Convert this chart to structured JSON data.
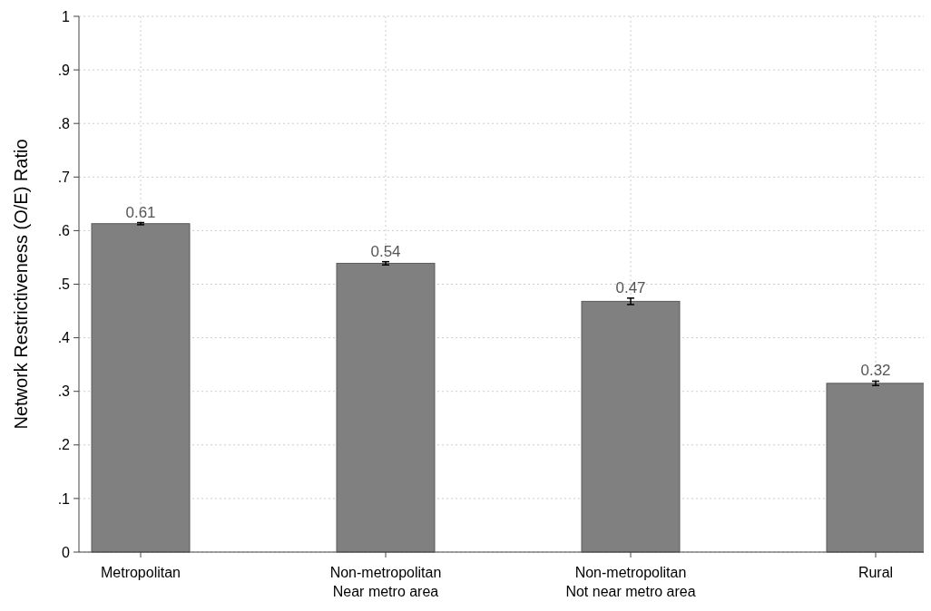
{
  "chart_data": {
    "type": "bar",
    "categories": [
      "Metropolitan",
      "Non-metropolitan\nNear metro area",
      "Non-metropolitan\nNot near metro area",
      "Rural"
    ],
    "values": [
      0.613,
      0.539,
      0.468,
      0.315
    ],
    "errors": [
      0.002,
      0.003,
      0.006,
      0.004
    ],
    "value_labels": [
      "0.61",
      "0.54",
      "0.47",
      "0.32"
    ],
    "color": "#808080",
    "ylabel": "Network Restrictiveness (O/E) Ratio",
    "ylim": [
      0,
      1
    ],
    "yticks": [
      0,
      {
        "value": 0.1,
        "label": ".1"
      },
      {
        "value": 0.2,
        "label": ".2"
      },
      {
        "value": 0.3,
        "label": ".3"
      },
      {
        "value": 0.4,
        "label": ".4"
      },
      {
        "value": 0.5,
        "label": ".5"
      },
      {
        "value": 0.6,
        "label": ".6"
      },
      {
        "value": 0.7,
        "label": ".7"
      },
      {
        "value": 0.8,
        "label": ".8"
      },
      {
        "value": 0.9,
        "label": ".9"
      },
      1
    ],
    "grid": true
  }
}
